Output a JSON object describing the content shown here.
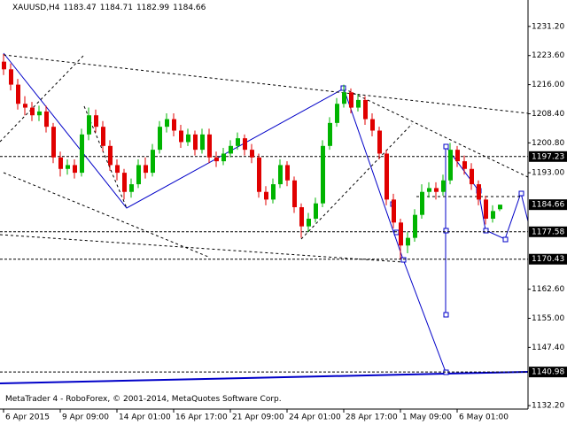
{
  "header": {
    "symbol": "XAUUSD,H4"
  },
  "footer": "MetaTrader 4 - RoboForex, © 2001-2014, MetaQuotes Software Corp.",
  "chart_data": {
    "type": "candlestick",
    "open": [
      1222,
      1220,
      1216,
      1211,
      1210,
      1208,
      1209,
      1205,
      1197,
      1194,
      1195,
      1193,
      1203,
      1208,
      1205,
      1200,
      1195,
      1193,
      1188,
      1190,
      1195,
      1193,
      1199,
      1205,
      1207,
      1204,
      1201,
      1203,
      1199,
      1203,
      1197,
      1196,
      1198,
      1200,
      1202,
      1199,
      1197,
      1188,
      1186,
      1190,
      1195,
      1191,
      1184,
      1179,
      1181,
      1185,
      1200,
      1206,
      1211,
      1214,
      1210,
      1212,
      1207,
      1204,
      1198,
      1186,
      1180,
      1174,
      1176,
      1182,
      1188,
      1189,
      1188,
      1191,
      1199,
      1196,
      1194,
      1190,
      1186,
      1181,
      1183.47
    ],
    "high": [
      1224,
      1221.5,
      1217.5,
      1213,
      1211.5,
      1210.5,
      1210.5,
      1206,
      1198.5,
      1196.5,
      1196.5,
      1204.5,
      1210,
      1209.5,
      1206.5,
      1201.5,
      1196.5,
      1194,
      1191.5,
      1196.5,
      1197,
      1200.5,
      1206.5,
      1208.5,
      1208.5,
      1205.5,
      1204.5,
      1204,
      1204.5,
      1204.5,
      1198.5,
      1199.5,
      1201.5,
      1203.5,
      1203,
      1200.5,
      1198,
      1189.5,
      1191.5,
      1196.5,
      1196,
      1192,
      1185,
      1182.5,
      1186.5,
      1201.5,
      1207.5,
      1212.5,
      1216,
      1215,
      1213.5,
      1213,
      1208.5,
      1205,
      1199,
      1187.5,
      1181,
      1177.5,
      1183.5,
      1190,
      1190.5,
      1190.5,
      1192.5,
      1200.8,
      1200,
      1197.5,
      1195.5,
      1191,
      1187,
      1184.5,
      1184.71
    ],
    "low": [
      1218.5,
      1214.5,
      1209.5,
      1208,
      1206.5,
      1206.5,
      1203.5,
      1195.5,
      1192,
      1192.5,
      1191.5,
      1192,
      1201.5,
      1203.5,
      1198.5,
      1193.5,
      1191,
      1186,
      1186.5,
      1189,
      1191.5,
      1192,
      1198,
      1203.5,
      1202.5,
      1199.5,
      1200,
      1197.5,
      1198,
      1195.5,
      1194.5,
      1195,
      1197,
      1199,
      1197.5,
      1195.5,
      1186.5,
      1184.5,
      1185,
      1189,
      1189.5,
      1182.5,
      1176,
      1177.5,
      1180,
      1184,
      1199,
      1205,
      1210,
      1208.5,
      1209,
      1205.5,
      1202.5,
      1196.5,
      1184.5,
      1178.5,
      1170.43,
      1172,
      1175,
      1181,
      1186.5,
      1186,
      1187,
      1190,
      1194.5,
      1192.5,
      1188.5,
      1184.5,
      1179.5,
      1180,
      1182.99
    ],
    "close": [
      1220,
      1216,
      1211,
      1210,
      1208,
      1209,
      1205,
      1197,
      1194,
      1195,
      1193,
      1203,
      1208,
      1205,
      1200,
      1195,
      1193,
      1188,
      1190,
      1195,
      1193,
      1199,
      1205,
      1207,
      1204,
      1201,
      1203,
      1199,
      1203,
      1197,
      1196,
      1198,
      1200,
      1202,
      1199,
      1197,
      1188,
      1186,
      1190,
      1195,
      1191,
      1184,
      1179,
      1181,
      1185,
      1200,
      1206,
      1211,
      1214,
      1210,
      1212,
      1207,
      1204,
      1198,
      1186,
      1180,
      1174,
      1176,
      1182,
      1188,
      1189,
      1188,
      1191,
      1199,
      1196,
      1194,
      1190,
      1186,
      1181,
      1183,
      1184.66
    ],
    "up_color": "#00b400",
    "down_color": "#e00000",
    "ylim": [
      1131.3,
      1238.1
    ],
    "yticks": [
      {
        "value": 1231.2,
        "label": "1231.20"
      },
      {
        "value": 1223.6,
        "label": "1223.60"
      },
      {
        "value": 1216,
        "label": "1216.00"
      },
      {
        "value": 1208.4,
        "label": "1208.40"
      },
      {
        "value": 1200.8,
        "label": "1200.80"
      },
      {
        "value": 1193,
        "label": "1193.00"
      },
      {
        "value": 1162.6,
        "label": "1162.60"
      },
      {
        "value": 1155,
        "label": "1155.00"
      },
      {
        "value": 1147.4,
        "label": "1147.40"
      },
      {
        "value": 1132.2,
        "label": "1132.20"
      }
    ],
    "xticks": [
      {
        "value": 0,
        "label": "6 Apr 2015"
      },
      {
        "value": 8,
        "label": "9 Apr 09:00"
      },
      {
        "value": 16,
        "label": "14 Apr 01:00"
      },
      {
        "value": 24,
        "label": "16 Apr 17:00"
      },
      {
        "value": 32,
        "label": "21 Apr 09:00"
      },
      {
        "value": 40,
        "label": "24 Apr 01:00"
      },
      {
        "value": 48,
        "label": "28 Apr 17:00"
      },
      {
        "value": 56,
        "label": "1 May 09:00"
      },
      {
        "value": 64,
        "label": "6 May 01:00"
      }
    ],
    "levels": [
      1197.23,
      1177.58,
      1170.43,
      1140.98
    ]
  }
}
